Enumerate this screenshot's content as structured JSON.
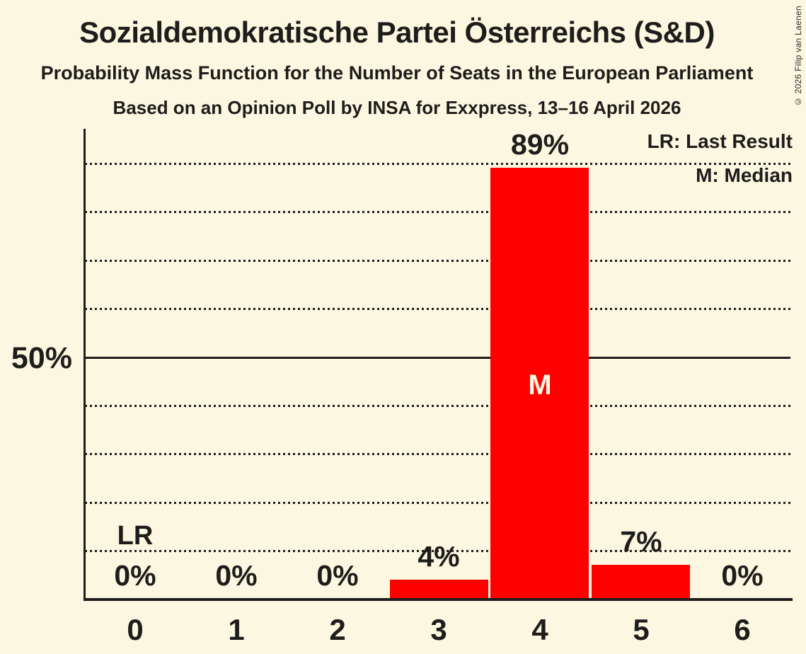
{
  "title": "Sozialdemokratische Partei Österreichs (S&D)",
  "subtitle": "Probability Mass Function for the Number of Seats in the European Parliament",
  "source_line": "Based on an Opinion Poll by INSA for Exxpress, 13–16 April 2026",
  "copyright": "© 2026 Filip van Laenen",
  "legend": {
    "lr": "LR: Last Result",
    "m": "M: Median"
  },
  "y_axis": {
    "tick_label": "50%",
    "tick_value": 50
  },
  "annotations": {
    "last_result_label": "LR",
    "last_result_seats": 0,
    "median_label": "M",
    "median_seats": 4
  },
  "chart_data": {
    "type": "bar",
    "title": "Sozialdemokratische Partei Österreichs (S&D)",
    "categories": [
      "0",
      "1",
      "2",
      "3",
      "4",
      "5",
      "6"
    ],
    "values": [
      0,
      0,
      0,
      4,
      89,
      7,
      0
    ],
    "bar_labels": [
      "0%",
      "0%",
      "0%",
      "4%",
      "89%",
      "7%",
      "0%"
    ],
    "xlabel": "",
    "ylabel": "",
    "ylim": [
      0,
      97
    ],
    "gridlines_dotted_pct": [
      10,
      20,
      30,
      40,
      60,
      70,
      80,
      90
    ],
    "gridline_solid_pct": 50,
    "legend_position": "top-right",
    "grid": true,
    "colors": {
      "bar": "#FF0000",
      "background": "#FCF7E0",
      "text": "#1D1D1B"
    }
  }
}
